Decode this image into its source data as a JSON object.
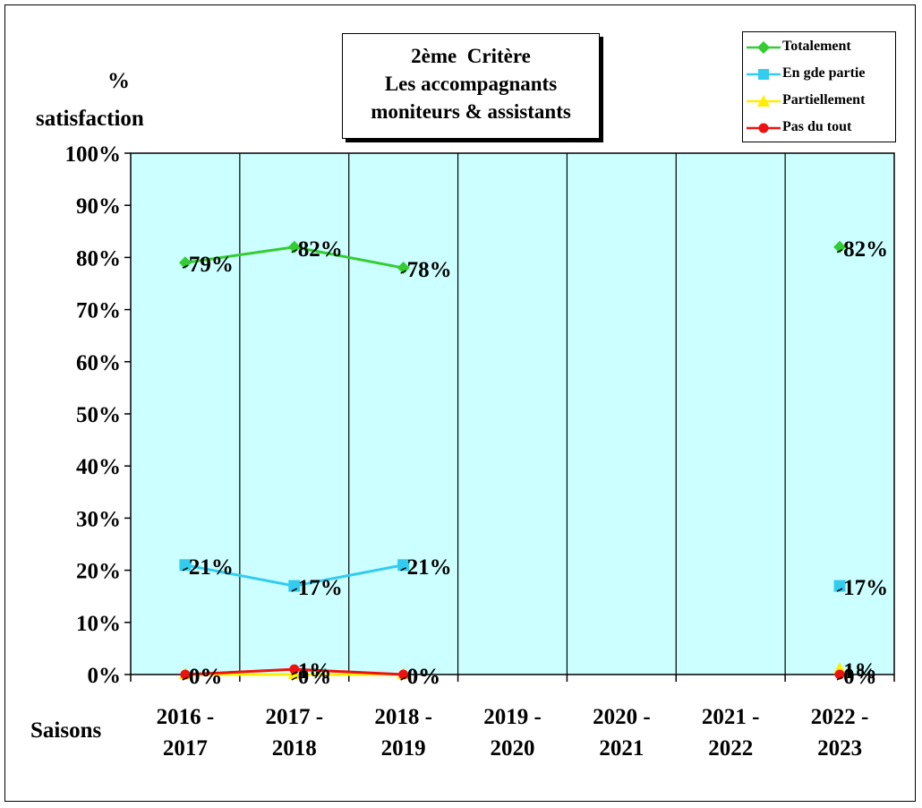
{
  "chart_data": {
    "type": "line",
    "title": [
      "2ème  Critère",
      "Les accompagnants",
      "moniteurs & assistants"
    ],
    "ylabel": [
      "%",
      "satisfaction"
    ],
    "xlabel": "Saisons",
    "categories": [
      [
        "2016 -",
        "2017"
      ],
      [
        "2017 -",
        "2018"
      ],
      [
        "2018 -",
        "2019"
      ],
      [
        "2019 -",
        "2020"
      ],
      [
        "2020 -",
        "2021"
      ],
      [
        "2021 -",
        "2022"
      ],
      [
        "2022 -",
        "2023"
      ]
    ],
    "ylim": [
      0,
      100
    ],
    "yticks": [
      "0%",
      "10%",
      "20%",
      "30%",
      "40%",
      "50%",
      "60%",
      "70%",
      "80%",
      "90%",
      "100%"
    ],
    "grid": "vertical",
    "legend_position": "top-right",
    "plot_background": "#ccffff",
    "series": [
      {
        "name": "Totalement",
        "color": "#33cc33",
        "marker": "diamond",
        "values": [
          79,
          82,
          78,
          null,
          null,
          null,
          82
        ],
        "labels": [
          "79%",
          "82%",
          "78%",
          "",
          "",
          "",
          "82%"
        ]
      },
      {
        "name": "En gde partie",
        "color": "#33ccee",
        "marker": "square",
        "values": [
          21,
          17,
          21,
          null,
          null,
          null,
          17
        ],
        "labels": [
          "21%",
          "17%",
          "21%",
          "",
          "",
          "",
          "17%"
        ]
      },
      {
        "name": "Partiellement",
        "color": "#ffee00",
        "marker": "triangle",
        "values": [
          0,
          0,
          0,
          null,
          null,
          null,
          1
        ],
        "labels": [
          "0%",
          "0%",
          "0%",
          "",
          "",
          "",
          "1%"
        ]
      },
      {
        "name": "Pas du tout",
        "color": "#ee1111",
        "marker": "circle",
        "values": [
          0,
          1,
          0,
          null,
          null,
          null,
          0
        ],
        "labels": [
          "0%",
          "1%",
          "0%",
          "",
          "",
          "",
          "0%"
        ]
      }
    ]
  }
}
